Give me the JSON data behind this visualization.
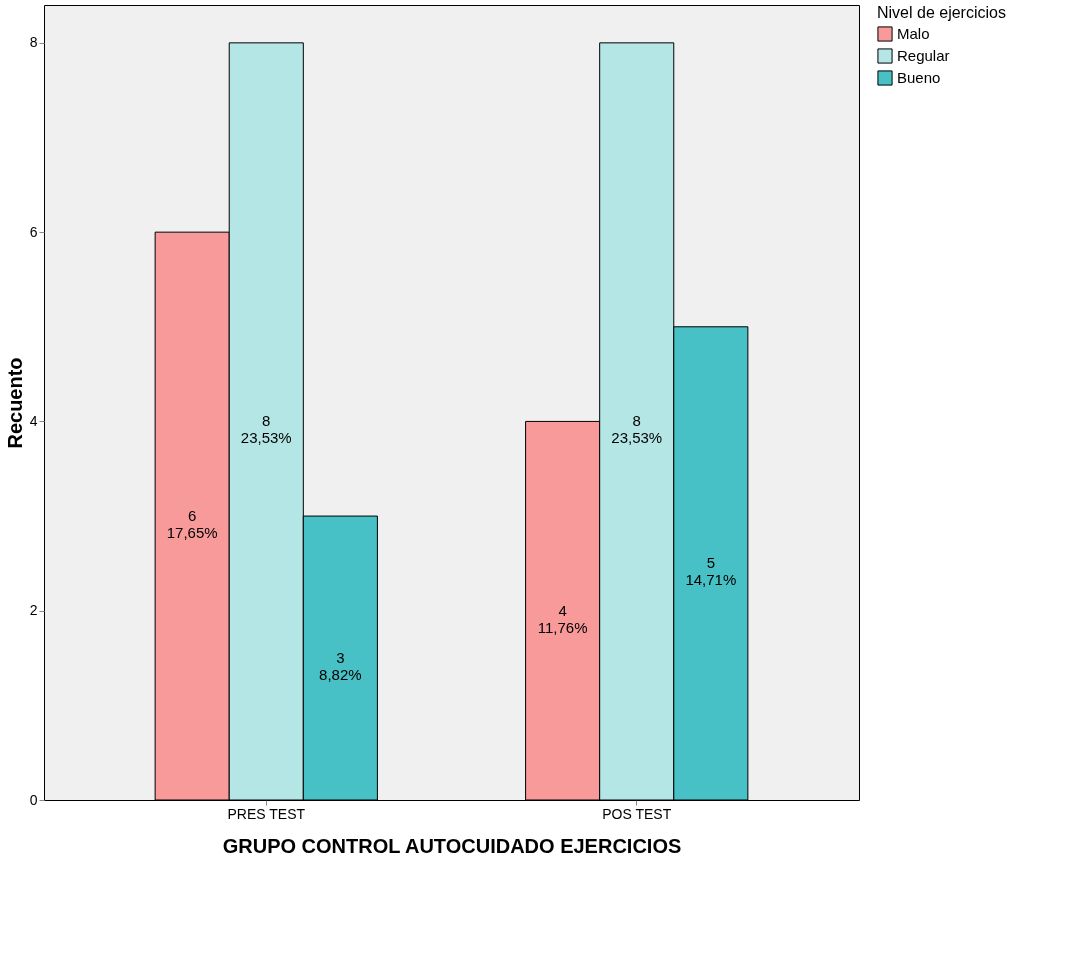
{
  "chart_data": {
    "type": "bar",
    "xlabel": "GRUPO CONTROL AUTOCUIDADO EJERCICIOS",
    "ylabel": "Recuento",
    "legend_title": "Nivel de ejercicios",
    "categories": [
      "PRES TEST",
      "POS TEST"
    ],
    "series": [
      {
        "name": "Malo",
        "color": "#f89a9a",
        "values": [
          6,
          4
        ],
        "value_labels": [
          "6\n17,65%",
          "4\n11,76%"
        ]
      },
      {
        "name": "Regular",
        "color": "#b4e6e6",
        "values": [
          8,
          8
        ],
        "value_labels": [
          "8\n23,53%",
          "8\n23,53%"
        ]
      },
      {
        "name": "Bueno",
        "color": "#47c1c5",
        "values": [
          3,
          5
        ],
        "value_labels": [
          "3\n8,82%",
          "5\n14,71%"
        ]
      }
    ],
    "ylim": [
      0,
      8.4
    ],
    "yticks": [
      0,
      2,
      4,
      6,
      8
    ],
    "grid": false,
    "legend": "top right"
  }
}
